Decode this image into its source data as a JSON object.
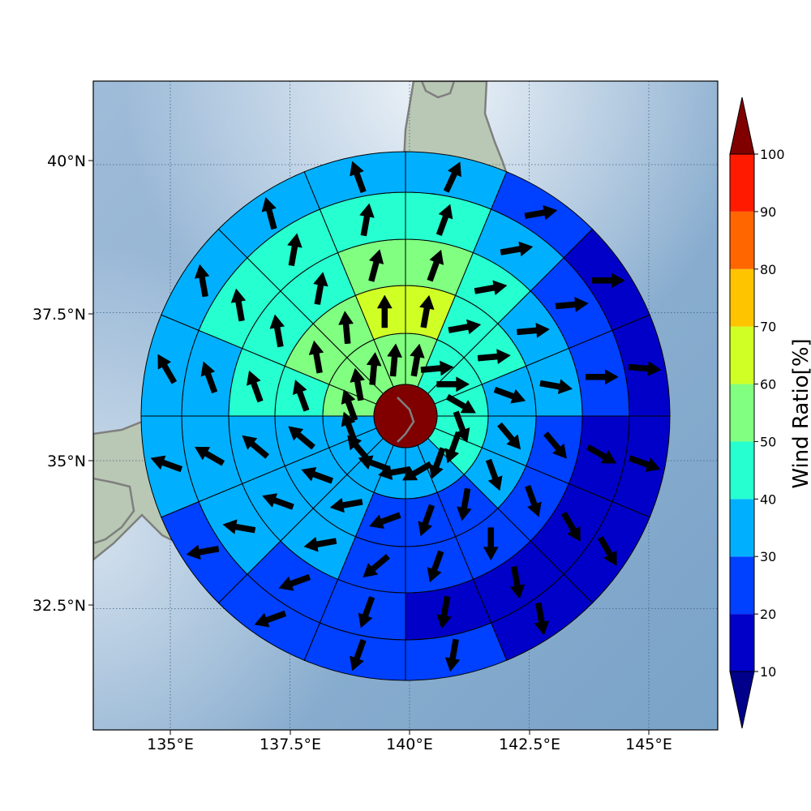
{
  "colors": {
    "ocean": "#8db2d6",
    "land": "#b7c5b3",
    "coast": "#7f7f7f",
    "grid": "#3d5f80",
    "ring_edge": "#000000",
    "arrow": "#000000",
    "center": "#800000"
  },
  "colorbar": {
    "label": "Wind Ratio[%]",
    "ticks": [
      "10",
      "20",
      "30",
      "40",
      "50",
      "60",
      "70",
      "80",
      "90",
      "100"
    ],
    "colors": [
      "#0000c8",
      "#0040ff",
      "#00b0ff",
      "#26ffd0",
      "#80ff80",
      "#d0ff26",
      "#ffc400",
      "#ff6600",
      "#ff1a00"
    ],
    "under_color": "#00008b",
    "over_color": "#800000",
    "extend": "both"
  },
  "axes": {
    "xticks": [
      "135°E",
      "137.5°E",
      "140°E",
      "142.5°E",
      "145°E"
    ],
    "yticks": [
      "40°N",
      "37.5°N",
      "35°N",
      "32.5°N"
    ],
    "grid": "dotted"
  },
  "chart_data": {
    "type": "polar-sector",
    "center_lon": 140.0,
    "center_lat": 35.8,
    "center_value": 100,
    "sectors_per_ring": 16,
    "sector_order": "clockwise from north",
    "rings": [
      {
        "ring": 1,
        "values": [
          55,
          45,
          40,
          40,
          40,
          40,
          35,
          35,
          35,
          35,
          35,
          35,
          50,
          50,
          50,
          55
        ],
        "wind_dir_deg": [
          10,
          85,
          90,
          120,
          160,
          200,
          200,
          240,
          260,
          290,
          320,
          340,
          340,
          350,
          5,
          5
        ]
      },
      {
        "ring": 2,
        "values": [
          65,
          45,
          45,
          35,
          30,
          30,
          25,
          25,
          25,
          35,
          30,
          35,
          45,
          55,
          55,
          60
        ],
        "wind_dir_deg": [
          10,
          80,
          85,
          110,
          140,
          160,
          190,
          200,
          250,
          260,
          290,
          310,
          340,
          350,
          355,
          0
        ]
      },
      {
        "ring": 3,
        "values": [
          55,
          45,
          35,
          30,
          25,
          25,
          20,
          20,
          20,
          30,
          35,
          35,
          40,
          40,
          45,
          55
        ],
        "wind_dir_deg": [
          20,
          80,
          85,
          100,
          140,
          160,
          180,
          200,
          230,
          260,
          290,
          310,
          340,
          350,
          10,
          15
        ]
      },
      {
        "ring": 4,
        "values": [
          45,
          35,
          25,
          20,
          15,
          15,
          15,
          15,
          20,
          25,
          30,
          30,
          35,
          40,
          45,
          40
        ],
        "wind_dir_deg": [
          20,
          80,
          85,
          90,
          120,
          150,
          170,
          190,
          200,
          250,
          280,
          300,
          340,
          350,
          10,
          10
        ]
      },
      {
        "ring": 5,
        "values": [
          35,
          25,
          15,
          15,
          15,
          15,
          15,
          20,
          20,
          25,
          25,
          30,
          30,
          35,
          35,
          35
        ],
        "wind_dir_deg": [
          25,
          80,
          90,
          95,
          110,
          150,
          170,
          190,
          200,
          250,
          260,
          290,
          330,
          350,
          345,
          340
        ]
      }
    ]
  }
}
